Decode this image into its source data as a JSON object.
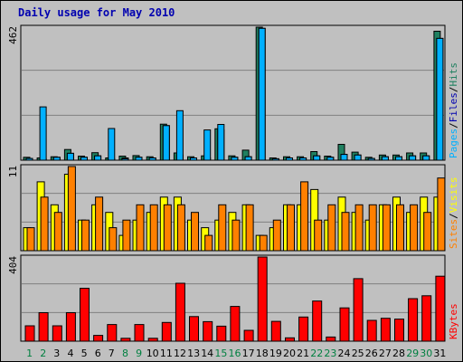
{
  "title": "Daily usage for May 2010",
  "colors": {
    "background": "#c0c0c0",
    "plot": "#c0c0c0",
    "gridline": "#808080",
    "title": "#0000b0",
    "pages": "#00b0ff",
    "hits": "#208060",
    "files": "#0000b0",
    "visits": "#ffff00",
    "sites": "#ff8000",
    "kbytes": "#ff0000",
    "weekday_label": "#000000",
    "weekend_label": "#008040",
    "legend_separator": "#000000"
  },
  "chart_data": [
    {
      "type": "bar",
      "panel": "hits-files-pages",
      "ymax_label": "462",
      "ylim": [
        0,
        462
      ],
      "legend": [
        {
          "label": "Pages",
          "color_key": "pages"
        },
        {
          "label": "/",
          "color_key": "legend_separator"
        },
        {
          "label": "Files",
          "color_key": "files"
        },
        {
          "label": "/",
          "color_key": "legend_separator"
        },
        {
          "label": "Hits",
          "color_key": "hits"
        }
      ],
      "series": [
        {
          "name": "Hits",
          "color_key": "hits",
          "values": [
            10,
            8,
            12,
            37,
            14,
            26,
            8,
            14,
            16,
            12,
            125,
            25,
            12,
            15,
            109,
            15,
            35,
            462,
            8,
            12,
            12,
            30,
            14,
            55,
            28,
            10,
            18,
            18,
            25,
            25,
            448
          ]
        },
        {
          "name": "Files",
          "color_key": "files",
          "values": [
            6,
            5,
            10,
            24,
            10,
            15,
            5,
            8,
            10,
            8,
            120,
            18,
            8,
            8,
            105,
            10,
            12,
            458,
            5,
            8,
            8,
            15,
            10,
            20,
            18,
            6,
            12,
            12,
            15,
            15,
            423
          ]
        },
        {
          "name": "Pages",
          "color_key": "pages",
          "values": [
            6,
            185,
            10,
            24,
            10,
            15,
            110,
            5,
            10,
            8,
            120,
            172,
            8,
            105,
            124,
            10,
            12,
            458,
            5,
            8,
            8,
            15,
            10,
            20,
            18,
            6,
            12,
            12,
            15,
            15,
            423
          ]
        }
      ]
    },
    {
      "type": "bar",
      "panel": "visits-sites",
      "ymax_label": "11",
      "ylim": [
        0,
        11
      ],
      "legend": [
        {
          "label": "Sites",
          "color_key": "sites"
        },
        {
          "label": "/",
          "color_key": "legend_separator"
        },
        {
          "label": "Visits",
          "color_key": "visits"
        }
      ],
      "series": [
        {
          "name": "Visits",
          "color_key": "visits",
          "values": [
            3,
            9,
            6,
            10,
            4,
            6,
            5,
            2,
            4,
            5,
            7,
            7,
            4,
            3,
            4,
            5,
            6,
            2,
            3,
            6,
            6,
            8,
            4,
            7,
            5,
            4,
            6,
            7,
            5,
            7,
            7
          ]
        },
        {
          "name": "Sites",
          "color_key": "sites",
          "values": [
            3,
            7,
            5,
            11,
            4,
            7,
            3,
            4,
            6,
            6,
            6,
            6,
            5,
            2,
            6,
            4,
            6,
            2,
            4,
            6,
            9,
            4,
            6,
            5,
            6,
            6,
            6,
            6,
            6,
            5,
            9.5
          ]
        }
      ]
    },
    {
      "type": "bar",
      "panel": "kbytes",
      "ymax_label": "404",
      "ylim": [
        0,
        404
      ],
      "legend": [
        {
          "label": "KBytes",
          "color_key": "kbytes"
        }
      ],
      "series": [
        {
          "name": "KBytes",
          "color_key": "kbytes",
          "values": [
            74,
            137,
            74,
            137,
            254,
            28,
            80,
            14,
            80,
            14,
            90,
            278,
            118,
            94,
            72,
            167,
            52,
            404,
            95,
            16,
            116,
            193,
            20,
            160,
            300,
            100,
            110,
            106,
            204,
            218,
            312
          ]
        }
      ]
    }
  ],
  "x_labels": [
    "1",
    "2",
    "3",
    "4",
    "5",
    "6",
    "7",
    "8",
    "9",
    "10",
    "11",
    "12",
    "13",
    "14",
    "15",
    "16",
    "17",
    "18",
    "19",
    "20",
    "21",
    "22",
    "23",
    "24",
    "25",
    "26",
    "27",
    "28",
    "29",
    "30",
    "31"
  ],
  "weekend_days": [
    1,
    2,
    8,
    9,
    15,
    16,
    22,
    23,
    29,
    30
  ]
}
